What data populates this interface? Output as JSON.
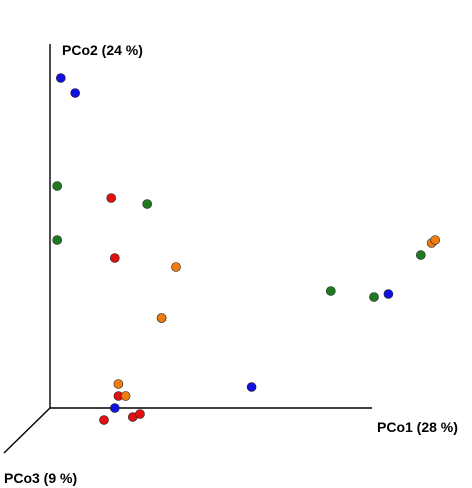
{
  "chart_data": {
    "type": "scatter",
    "projection": "3d-pcoa",
    "axes": {
      "x": {
        "label": "PCo1 (28 %)"
      },
      "y": {
        "label": "PCo2 (24 %)"
      },
      "z": {
        "label": "PCo3 (9 %)"
      }
    },
    "grid": false,
    "legend": "none",
    "group_colors": {
      "blue": "#1010e0",
      "green": "#1e7a1e",
      "red": "#e01010",
      "orange": "#f07c10"
    },
    "points": [
      {
        "group": "blue",
        "pco1": -0.02,
        "pco2": 1.1
      },
      {
        "group": "blue",
        "pco1": 0.02,
        "pco2": 1.05
      },
      {
        "group": "green",
        "pco1": -0.03,
        "pco2": 0.74
      },
      {
        "group": "green",
        "pco1": -0.03,
        "pco2": 0.56
      },
      {
        "group": "red",
        "pco1": 0.12,
        "pco2": 0.7
      },
      {
        "group": "green",
        "pco1": 0.22,
        "pco2": 0.68
      },
      {
        "group": "red",
        "pco1": 0.13,
        "pco2": 0.5
      },
      {
        "group": "orange",
        "pco1": 0.3,
        "pco2": 0.47
      },
      {
        "group": "blue",
        "pco1": 0.26,
        "pco2": 0.3
      },
      {
        "group": "orange",
        "pco1": 0.26,
        "pco2": 0.3
      },
      {
        "group": "green",
        "pco1": 0.73,
        "pco2": 0.39
      },
      {
        "group": "green",
        "pco1": 0.85,
        "pco2": 0.37
      },
      {
        "group": "blue",
        "pco1": 0.89,
        "pco2": 0.38
      },
      {
        "group": "green",
        "pco1": 0.98,
        "pco2": 0.51
      },
      {
        "group": "orange",
        "pco1": 1.01,
        "pco2": 0.55
      },
      {
        "group": "orange",
        "pco1": 1.02,
        "pco2": 0.56
      },
      {
        "group": "blue",
        "pco1": 0.51,
        "pco2": 0.07
      },
      {
        "group": "orange",
        "pco1": 0.14,
        "pco2": 0.08
      },
      {
        "group": "red",
        "pco1": 0.14,
        "pco2": 0.04
      },
      {
        "group": "orange",
        "pco1": 0.16,
        "pco2": 0.04
      },
      {
        "group": "blue",
        "pco1": 0.13,
        "pco2": 0.0
      },
      {
        "group": "red",
        "pco1": 0.1,
        "pco2": -0.04
      },
      {
        "group": "red",
        "pco1": 0.18,
        "pco2": -0.03
      },
      {
        "group": "red",
        "pco1": 0.2,
        "pco2": -0.02
      }
    ]
  }
}
